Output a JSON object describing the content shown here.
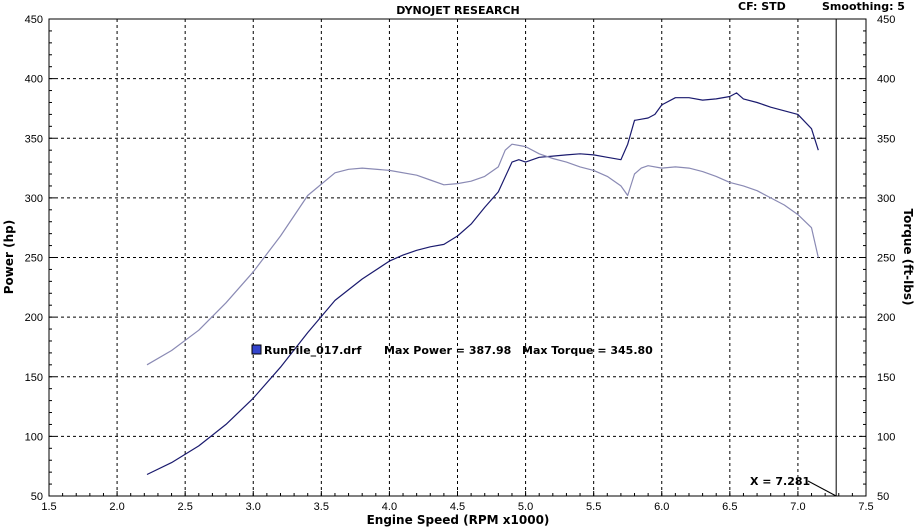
{
  "header": {
    "title": "DYNOJET RESEARCH",
    "correction": "CF: STD",
    "smoothing": "Smoothing: 5"
  },
  "chart_data": {
    "type": "line",
    "title": "DYNOJET RESEARCH",
    "xlabel": "Engine Speed (RPM x1000)",
    "ylabel": "Power (hp)",
    "y2label": "Torque (ft-lbs)",
    "xlim": [
      1.5,
      7.5
    ],
    "ylim": [
      50,
      450
    ],
    "y2lim": [
      50,
      450
    ],
    "grid": true,
    "x_ticks": [
      "1.5",
      "2.0",
      "2.5",
      "3.0",
      "3.5",
      "4.0",
      "4.5",
      "5.0",
      "5.5",
      "6.0",
      "6.5",
      "7.0",
      "7.5"
    ],
    "y_ticks": [
      "50",
      "100",
      "150",
      "200",
      "250",
      "300",
      "350",
      "400",
      "450"
    ],
    "y2_ticks": [
      "50",
      "100",
      "150",
      "200",
      "250",
      "300",
      "350",
      "400",
      "450"
    ],
    "cursor": {
      "x": 7.281,
      "label": "X = 7.281"
    },
    "legend": {
      "file": "RunFile_017.drf",
      "max_power": "Max Power = 387.98",
      "max_torque": "Max Torque = 345.80",
      "swatch_color": "#3344cc"
    },
    "series": [
      {
        "color": "#1a1a6e",
        "x": [
          2.22,
          2.4,
          2.6,
          2.8,
          3.0,
          3.2,
          3.4,
          3.6,
          3.8,
          4.0,
          4.1,
          4.2,
          4.3,
          4.4,
          4.5,
          4.6,
          4.7,
          4.8,
          4.9,
          4.95,
          5.0,
          5.1,
          5.2,
          5.3,
          5.4,
          5.5,
          5.6,
          5.7,
          5.75,
          5.8,
          5.85,
          5.9,
          5.95,
          6.0,
          6.1,
          6.2,
          6.3,
          6.4,
          6.5,
          6.55,
          6.6,
          6.7,
          6.8,
          6.9,
          7.0,
          7.1,
          7.15
        ],
        "values": [
          68,
          78,
          92,
          110,
          132,
          158,
          187,
          214,
          232,
          247,
          252,
          256,
          259,
          261,
          268,
          278,
          292,
          305,
          330,
          332,
          330,
          334,
          335,
          336,
          337,
          336,
          334,
          332,
          345,
          365,
          366,
          367,
          370,
          378,
          384,
          384,
          382,
          383,
          385,
          388,
          383,
          380,
          376,
          373,
          370,
          358,
          340
        ]
      },
      {
        "color": "#8a8ab4",
        "x": [
          2.22,
          2.4,
          2.6,
          2.8,
          3.0,
          3.2,
          3.4,
          3.6,
          3.7,
          3.8,
          4.0,
          4.2,
          4.3,
          4.4,
          4.5,
          4.6,
          4.7,
          4.8,
          4.85,
          4.9,
          5.0,
          5.1,
          5.2,
          5.3,
          5.4,
          5.5,
          5.6,
          5.7,
          5.75,
          5.8,
          5.85,
          5.9,
          6.0,
          6.1,
          6.2,
          6.3,
          6.4,
          6.5,
          6.6,
          6.7,
          6.8,
          6.9,
          7.0,
          7.1,
          7.15
        ],
        "values": [
          160,
          172,
          189,
          212,
          238,
          268,
          302,
          321,
          324,
          325,
          323,
          319,
          315,
          311,
          312,
          314,
          318,
          326,
          340,
          345,
          343,
          337,
          333,
          330,
          326,
          323,
          318,
          310,
          302,
          320,
          325,
          327,
          325,
          326,
          325,
          322,
          318,
          313,
          310,
          306,
          300,
          294,
          286,
          275,
          250
        ]
      }
    ]
  }
}
